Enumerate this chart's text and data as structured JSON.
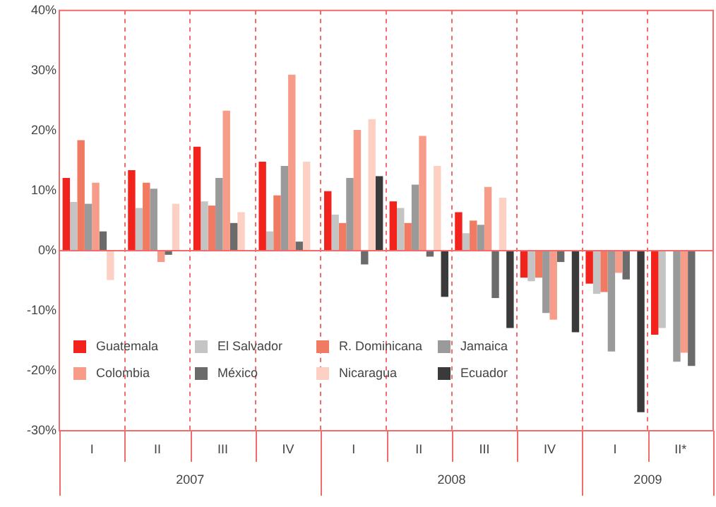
{
  "chart_data": {
    "type": "bar",
    "categories": [
      "I",
      "II",
      "III",
      "IV",
      "I",
      "II",
      "III",
      "IV",
      "I",
      "II*"
    ],
    "series": [
      {
        "name": "Guatemala",
        "color": "#f2231c",
        "values": [
          12.1,
          13.4,
          17.3,
          14.8,
          9.9,
          8.2,
          6.4,
          -4.5,
          -5.5,
          -14.0
        ]
      },
      {
        "name": "El Salvador",
        "color": "#c4c4c4",
        "values": [
          8.1,
          7.1,
          8.2,
          3.2,
          6.0,
          7.1,
          2.9,
          -5.1,
          -7.2,
          -12.9
        ]
      },
      {
        "name": "R. Dominicana",
        "color": "#f07a62",
        "values": [
          18.4,
          11.3,
          7.5,
          9.2,
          4.6,
          4.6,
          5.0,
          -4.5,
          -6.9,
          null
        ]
      },
      {
        "name": "Jamaica",
        "color": "#9a9a9a",
        "values": [
          7.8,
          10.3,
          12.1,
          14.1,
          12.1,
          11.0,
          4.3,
          -10.4,
          -16.8,
          -18.5
        ]
      },
      {
        "name": "Colombia",
        "color": "#f79c88",
        "values": [
          11.3,
          -1.9,
          23.3,
          29.3,
          20.1,
          19.1,
          10.6,
          -11.5,
          -3.7,
          -17.0
        ]
      },
      {
        "name": "México",
        "color": "#6b6b6b",
        "values": [
          3.2,
          -0.7,
          4.6,
          1.5,
          -2.3,
          -1.0,
          -7.9,
          -1.9,
          -4.8,
          -19.2
        ]
      },
      {
        "name": "Nicaragua",
        "color": "#fdd0c4",
        "values": [
          -4.9,
          7.8,
          6.4,
          14.8,
          21.9,
          14.1,
          8.8,
          null,
          null,
          null
        ]
      },
      {
        "name": "Ecuador",
        "color": "#3a3a3a",
        "values": [
          null,
          null,
          null,
          null,
          12.4,
          -7.7,
          -12.9,
          -13.6,
          -26.9,
          null
        ]
      }
    ],
    "ylim": [
      -30,
      40
    ],
    "yticks": [
      {
        "value": -30,
        "label": "-30%"
      },
      {
        "value": -20,
        "label": "-20%"
      },
      {
        "value": -10,
        "label": "-10%"
      },
      {
        "value": 0,
        "label": "0%"
      },
      {
        "value": 10,
        "label": "10%"
      },
      {
        "value": 20,
        "label": "20%"
      },
      {
        "value": 30,
        "label": "30%"
      },
      {
        "value": 40,
        "label": "40%"
      }
    ],
    "annotations": [
      "2007",
      "2008",
      "2009"
    ],
    "ref_lines": [
      {
        "axis": "y",
        "value": 0,
        "color": "#f26a6a"
      }
    ],
    "grid": "x",
    "legend": "bottom left"
  }
}
